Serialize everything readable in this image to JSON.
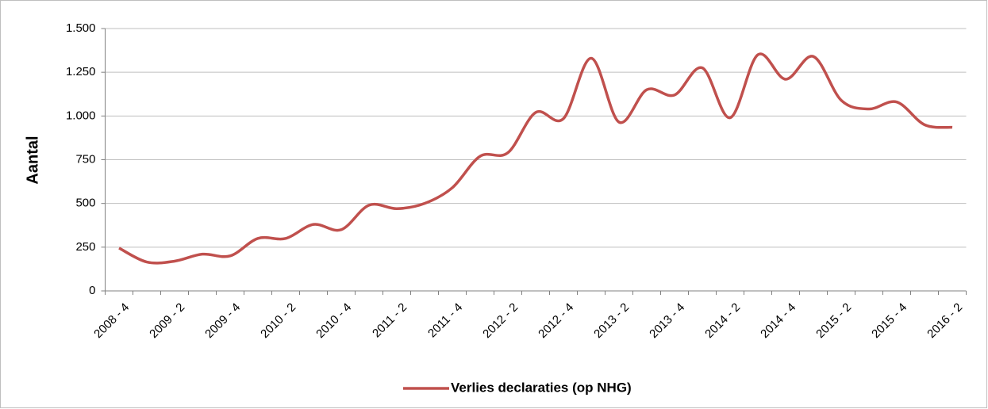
{
  "chart_data": {
    "type": "line",
    "y_label": "Aantal",
    "categories": [
      "2008 - 4",
      null,
      "2009 - 2",
      null,
      "2009 - 4",
      null,
      "2010 - 2",
      null,
      "2010 - 4",
      null,
      "2011 - 2",
      null,
      "2011 - 4",
      null,
      "2012 - 2",
      null,
      "2012 - 4",
      null,
      "2013 - 2",
      null,
      "2013 - 4",
      null,
      "2014 - 2",
      null,
      "2014 - 4",
      null,
      "2015 - 2",
      null,
      "2015 - 4",
      null,
      "2016 - 2"
    ],
    "series": [
      {
        "name": "Verlies declaraties (op NHG)",
        "color": "#c0504d",
        "values": [
          245,
          165,
          170,
          210,
          200,
          300,
          300,
          380,
          350,
          490,
          470,
          500,
          590,
          770,
          790,
          1020,
          985,
          1330,
          965,
          1150,
          1120,
          1275,
          990,
          1350,
          1210,
          1340,
          1090,
          1040,
          1080,
          950,
          935
        ]
      }
    ],
    "ylim": [
      0,
      1500
    ],
    "yticks": [
      0,
      250,
      500,
      750,
      {
        "value": 1000,
        "label": "1.000"
      },
      {
        "value": 1250,
        "label": "1.250"
      },
      {
        "value": 1500,
        "label": "1.500"
      }
    ],
    "grid": true,
    "legend": "bottom"
  }
}
